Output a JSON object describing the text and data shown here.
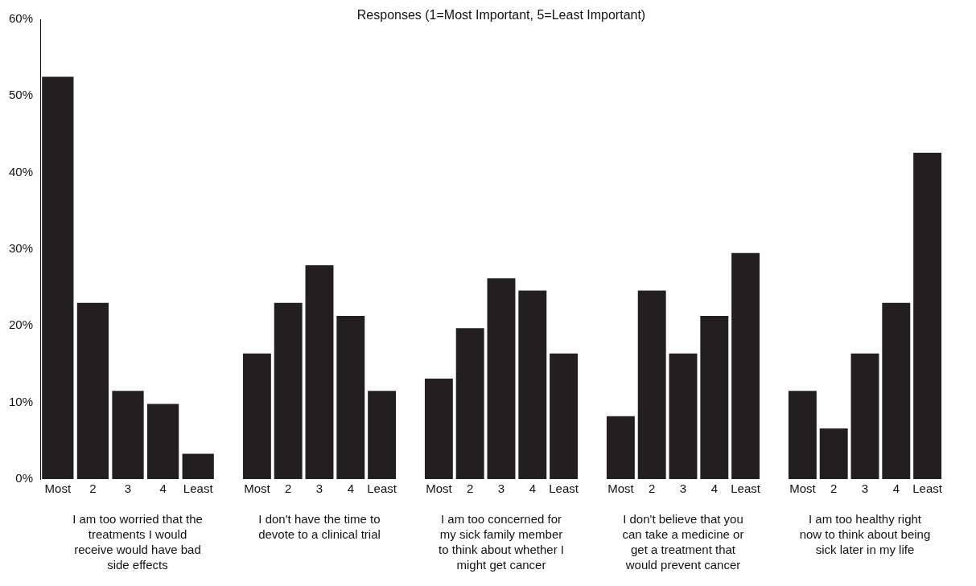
{
  "chart_data": [
    {
      "type": "bar",
      "xlabel": "I am too worried that the treatments I would receive would have bad side effects",
      "categories": [
        "Most",
        "2",
        "3",
        "4",
        "Least"
      ],
      "values": [
        52.5,
        23,
        11.5,
        9.8,
        3.3
      ],
      "color": "#231f20",
      "ylim": [
        0,
        60
      ],
      "yticks": [
        {
          "value": 0,
          "label": "0%"
        },
        {
          "value": 10,
          "label": "10%"
        },
        {
          "value": 20,
          "label": "20%"
        },
        {
          "value": 30,
          "label": "30%"
        },
        {
          "value": 40,
          "label": "40%"
        },
        {
          "value": 50,
          "label": "50%"
        },
        {
          "value": 60,
          "label": "60%"
        }
      ],
      "grid": false
    },
    {
      "type": "bar",
      "xlabel": "I don't have the time to devote to a clinical trial",
      "categories": [
        "Most",
        "2",
        "3",
        "4",
        "Least"
      ],
      "values": [
        16.4,
        23,
        27.9,
        21.3,
        11.5
      ],
      "color": "#231f20",
      "ylim": [
        0,
        60
      ],
      "grid": false,
      "tick_labels": "x"
    },
    {
      "type": "bar",
      "title": "Responses (1=Most Important, 5=Least Important)",
      "xlabel": "I am too concerned for my sick family member to think about whether I might get cancer",
      "categories": [
        "Most",
        "2",
        "3",
        "4",
        "Least"
      ],
      "values": [
        13.1,
        19.7,
        26.2,
        24.6,
        16.4
      ],
      "color": "#231f20",
      "ylim": [
        0,
        60
      ],
      "grid": false,
      "tick_labels": "x"
    },
    {
      "type": "bar",
      "xlabel": "I don't believe that you can take a medicine or get a treatment that would prevent cancer",
      "categories": [
        "Most",
        "2",
        "3",
        "4",
        "Least"
      ],
      "values": [
        8.2,
        24.6,
        16.4,
        21.3,
        29.5
      ],
      "color": "#231f20",
      "ylim": [
        0,
        60
      ],
      "grid": false,
      "tick_labels": "x"
    },
    {
      "type": "bar",
      "xlabel": "I am too healthy right now to think about being sick later in my life",
      "categories": [
        "Most",
        "2",
        "3",
        "4",
        "Least"
      ],
      "values": [
        11.5,
        6.6,
        16.4,
        23,
        42.6
      ],
      "color": "#231f20",
      "ylim": [
        0,
        60
      ],
      "grid": false,
      "tick_labels": "x"
    }
  ]
}
